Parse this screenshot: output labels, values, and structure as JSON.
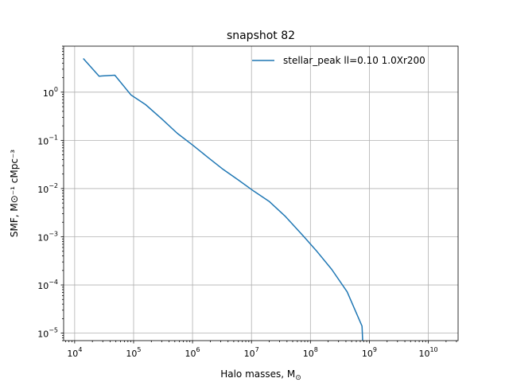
{
  "chart_data": {
    "type": "line",
    "title": "snapshot 82",
    "xlabel": "Halo masses, M",
    "xlabel_sub": "⊙",
    "ylabel": "SMF, M⊙⁻¹ cMpc⁻³",
    "xscale": "log",
    "yscale": "log",
    "xlim": [
      6500.0,
      32000000000.0
    ],
    "ylim": [
      7e-06,
      9.0
    ],
    "grid": true,
    "legend_loc": "upper right",
    "x_ticks": [
      {
        "value": 10000.0,
        "base": "10",
        "exp": "4"
      },
      {
        "value": 100000.0,
        "base": "10",
        "exp": "5"
      },
      {
        "value": 1000000.0,
        "base": "10",
        "exp": "6"
      },
      {
        "value": 10000000.0,
        "base": "10",
        "exp": "7"
      },
      {
        "value": 100000000.0,
        "base": "10",
        "exp": "8"
      },
      {
        "value": 1000000000.0,
        "base": "10",
        "exp": "9"
      },
      {
        "value": 10000000000.0,
        "base": "10",
        "exp": "10"
      }
    ],
    "y_ticks": [
      {
        "value": 1.0,
        "base": "10",
        "exp": "0"
      },
      {
        "value": 0.1,
        "base": "10",
        "exp": "−1"
      },
      {
        "value": 0.01,
        "base": "10",
        "exp": "−2"
      },
      {
        "value": 0.001,
        "base": "10",
        "exp": "−3"
      },
      {
        "value": 0.0001,
        "base": "10",
        "exp": "−4"
      },
      {
        "value": 1e-05,
        "base": "10",
        "exp": "−5"
      }
    ],
    "series": [
      {
        "name": "stellar_peak ll=0.10 1.0Xr200",
        "color": "#1f77b4",
        "x": [
          14000.0,
          26000.0,
          48000.0,
          90000.0,
          160000.0,
          300000.0,
          550000.0,
          1000000.0,
          1800000.0,
          3300000.0,
          6000000.0,
          11000000.0,
          20000000.0,
          37000000.0,
          68000000.0,
          125000000.0,
          230000000.0,
          420000000.0,
          750000000.0,
          770000000.0
        ],
        "y": [
          5.0,
          2.15,
          2.25,
          0.88,
          0.55,
          0.28,
          0.14,
          0.08,
          0.045,
          0.025,
          0.015,
          0.0088,
          0.0054,
          0.0027,
          0.0012,
          0.00052,
          0.00021,
          7.2e-05,
          1.4e-05,
          7e-06
        ]
      }
    ]
  }
}
